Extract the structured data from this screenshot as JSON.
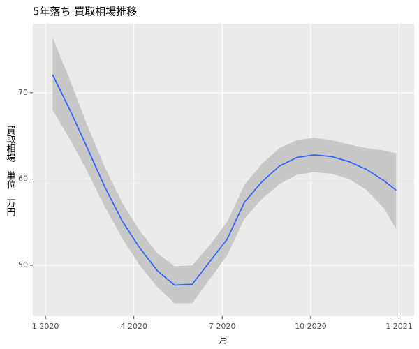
{
  "chart_data": {
    "type": "line",
    "title": "5年落ち 買取相場推移",
    "x_label": "月",
    "y_label": "買取相場　単位　万円",
    "x": [
      0.24,
      0.83,
      1.42,
      2.01,
      2.61,
      3.2,
      3.79,
      4.38,
      4.98,
      5.57,
      6.16,
      6.75,
      7.35,
      7.94,
      8.53,
      9.12,
      9.72,
      10.31,
      10.9,
      11.49,
      11.9
    ],
    "series": [
      {
        "color": "#3366ff",
        "values": [
          72.1,
          68.0,
          63.6,
          59.1,
          55.1,
          52.0,
          49.4,
          47.7,
          47.8,
          50.4,
          53.0,
          57.3,
          59.7,
          61.5,
          62.5,
          62.8,
          62.6,
          62.0,
          61.1,
          59.8,
          58.7
        ],
        "upper": [
          76.4,
          71.5,
          66.2,
          61.4,
          57.2,
          54.0,
          51.4,
          49.9,
          50.0,
          52.3,
          55.0,
          59.3,
          61.8,
          63.6,
          64.5,
          64.8,
          64.5,
          64.0,
          63.6,
          63.3,
          63.0
        ],
        "lower": [
          68.0,
          64.6,
          60.9,
          56.8,
          53.1,
          50.0,
          47.5,
          45.6,
          45.6,
          48.4,
          51.1,
          55.4,
          57.7,
          59.4,
          60.5,
          60.8,
          60.6,
          60.0,
          58.7,
          56.6,
          54.2
        ],
        "band_color": "#c8c8c8"
      }
    ],
    "xlim": [
      -0.43,
      12.51
    ],
    "xticks": [
      {
        "value": 0,
        "label": "1 2020"
      },
      {
        "value": 3,
        "label": "4 2020"
      },
      {
        "value": 6,
        "label": "7 2020"
      },
      {
        "value": 9,
        "label": "10 2020"
      },
      {
        "value": 12,
        "label": "1 2021"
      }
    ],
    "ylim": [
      44.1,
      78.0
    ],
    "yticks": [
      50,
      60,
      70
    ],
    "grid": true
  }
}
